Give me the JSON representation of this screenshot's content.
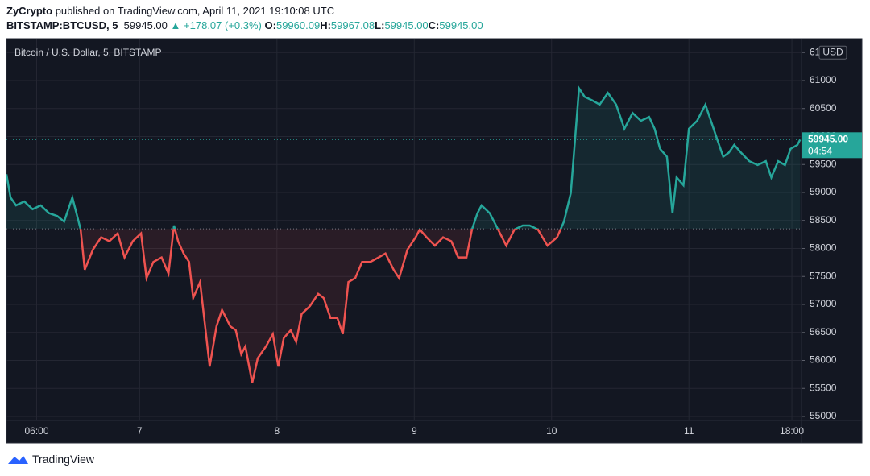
{
  "header": {
    "author": "ZyCrypto",
    "published": "published on TradingView.com, April 11, 2021 19:10:08 UTC",
    "symbol": "BITSTAMP:BTCUSD, 5",
    "price": "59945.00",
    "change": "+178.07 (+0.3%)",
    "ohlc": [
      {
        "label": "O:",
        "value": "59960.09"
      },
      {
        "label": "H:",
        "value": "59967.08"
      },
      {
        "label": "L:",
        "value": "59945.00"
      },
      {
        "label": "C:",
        "value": "59945.00"
      }
    ]
  },
  "chart_data": {
    "type": "line",
    "title": "Bitcoin / U.S. Dollar, 5, BITSTAMP",
    "currency": "USD",
    "x": [
      6.03,
      6.06,
      6.1,
      6.16,
      6.22,
      6.28,
      6.34,
      6.4,
      6.45,
      6.51,
      6.54,
      6.57,
      6.6,
      6.66,
      6.72,
      6.78,
      6.84,
      6.89,
      6.95,
      7.01,
      7.05,
      7.1,
      7.16,
      7.21,
      7.25,
      7.28,
      7.32,
      7.36,
      7.39,
      7.44,
      7.48,
      7.51,
      7.56,
      7.6,
      7.66,
      7.7,
      7.74,
      7.77,
      7.82,
      7.86,
      7.92,
      7.97,
      8.01,
      8.05,
      8.1,
      8.14,
      8.18,
      8.24,
      8.3,
      8.34,
      8.39,
      8.44,
      8.48,
      8.52,
      8.57,
      8.62,
      8.68,
      8.74,
      8.79,
      8.85,
      8.89,
      8.95,
      9.01,
      9.04,
      9.09,
      9.15,
      9.21,
      9.27,
      9.32,
      9.38,
      9.42,
      9.46,
      9.49,
      9.55,
      9.61,
      9.67,
      9.73,
      9.79,
      9.84,
      9.9,
      9.97,
      10.04,
      10.09,
      10.14,
      10.17,
      10.2,
      10.24,
      10.3,
      10.35,
      10.41,
      10.47,
      10.53,
      10.59,
      10.65,
      10.71,
      10.75,
      10.79,
      10.84,
      10.88,
      10.91,
      10.96,
      11.0,
      11.06,
      11.12,
      11.16,
      11.21,
      11.25,
      11.29,
      11.33,
      11.38,
      11.44,
      11.5,
      11.56,
      11.6,
      11.65,
      11.7,
      11.74,
      11.79,
      11.81
    ],
    "values": [
      59325,
      58910,
      58770,
      58840,
      58700,
      58770,
      58630,
      58580,
      58480,
      58910,
      58630,
      58340,
      57620,
      57980,
      58200,
      58130,
      58270,
      57840,
      58130,
      58270,
      57470,
      57760,
      57840,
      57550,
      58410,
      58130,
      57910,
      57760,
      57115,
      57400,
      56540,
      55890,
      56610,
      56900,
      56610,
      56540,
      56110,
      56250,
      55600,
      56040,
      56250,
      56470,
      55890,
      56400,
      56540,
      56330,
      56830,
      56970,
      57190,
      57115,
      56760,
      56760,
      56470,
      57400,
      57470,
      57760,
      57760,
      57840,
      57910,
      57620,
      57470,
      57980,
      58200,
      58340,
      58200,
      58050,
      58200,
      58130,
      57840,
      57840,
      58340,
      58630,
      58770,
      58630,
      58340,
      58050,
      58340,
      58410,
      58410,
      58340,
      58050,
      58200,
      58480,
      58990,
      59920,
      60860,
      60710,
      60640,
      60570,
      60780,
      60570,
      60140,
      60420,
      60280,
      60350,
      60140,
      59780,
      59640,
      58630,
      59270,
      59130,
      60140,
      60280,
      60570,
      60280,
      59920,
      59640,
      59710,
      59850,
      59710,
      59560,
      59490,
      59560,
      59270,
      59560,
      59490,
      59780,
      59850,
      59945
    ],
    "baseline": 58350,
    "up_color": "#26a69a",
    "down_color": "#ef5350",
    "xlim": [
      6.03,
      11.82
    ],
    "xticks": [
      {
        "value": 6.25,
        "label": "06:00"
      },
      7,
      8,
      9,
      10,
      11,
      {
        "value": 11.75,
        "label": "18:00"
      }
    ],
    "ylim": [
      54928,
      61748
    ],
    "yticks": [
      55000,
      55500,
      56000,
      56500,
      57000,
      57500,
      58000,
      58500,
      59000,
      59500,
      60000,
      60500,
      61000,
      {
        "value": 61500,
        "label": "61"
      }
    ],
    "grid": true,
    "last_price": {
      "value": 59945,
      "label": "59945.00"
    },
    "countdown": "04:54"
  },
  "footer": {
    "brand": "TradingView"
  }
}
